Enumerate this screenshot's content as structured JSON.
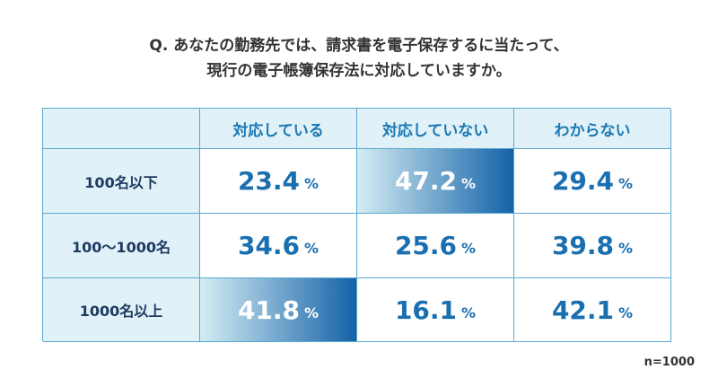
{
  "title": {
    "line1": "Q. あなたの勤務先では、請求書を電子保存するに当たって、",
    "line2": "現行の電子帳簿保存法に対応していますか。"
  },
  "table": {
    "columns": [
      "対応している",
      "対応していない",
      "わからない"
    ],
    "unit": "%",
    "rows": [
      {
        "label": "100名以下",
        "cells": [
          "23.4",
          "47.2",
          "29.4"
        ],
        "highlight": 1
      },
      {
        "label": "100〜1000名",
        "cells": [
          "34.6",
          "25.6",
          "39.8"
        ],
        "highlight": null
      },
      {
        "label": "1000名以上",
        "cells": [
          "41.8",
          "16.1",
          "42.1"
        ],
        "highlight": 0
      }
    ]
  },
  "note": "n=1000"
}
